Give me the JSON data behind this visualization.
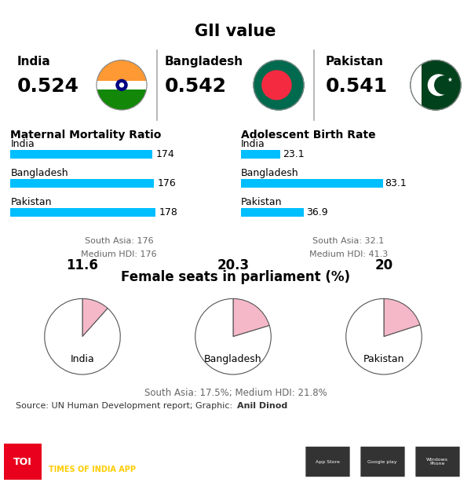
{
  "title_gii": "GII value",
  "countries": [
    "India",
    "Bangladesh",
    "Pakistan"
  ],
  "gii_values": [
    "0.524",
    "0.542",
    "0.541"
  ],
  "mmr_title": "Maternal Mortality Ratio",
  "mmr_values": [
    174,
    176,
    178
  ],
  "mmr_max": 200,
  "mmr_south_asia": 176,
  "mmr_medium_hdi": 176,
  "abr_title": "Adolescent Birth Rate",
  "abr_values": [
    23.1,
    83.1,
    36.9
  ],
  "abr_max": 100,
  "abr_south_asia": 32.1,
  "abr_medium_hdi": 41.3,
  "parliament_title": "Female seats in parliament (%)",
  "parliament_values": [
    11.6,
    20.3,
    20.0
  ],
  "parliament_value_labels": [
    "11.6",
    "20.3",
    "20"
  ],
  "parliament_south_asia": "17.5%",
  "parliament_medium_hdi": "21.8%",
  "bar_color": "#00BFFF",
  "pie_pink": "#F5B8C8",
  "pie_white": "#FFFFFF",
  "bg_color": "#FFFFFF",
  "source_text_plain": "Source: UN Human Development report; Graphic: ",
  "source_bold": "Anil Dinod",
  "footer_bg": "#1A1A1A",
  "toi_color": "#E8001C",
  "india_flag_colors": [
    "#FF9933",
    "#FFFFFF",
    "#138808"
  ],
  "india_ashoka_color": "#000080",
  "bd_flag_green": "#006A4E",
  "bd_flag_red": "#F42A41",
  "pak_flag_green": "#01411C",
  "divider_color": "#AAAAAA",
  "note_color": "#666666"
}
